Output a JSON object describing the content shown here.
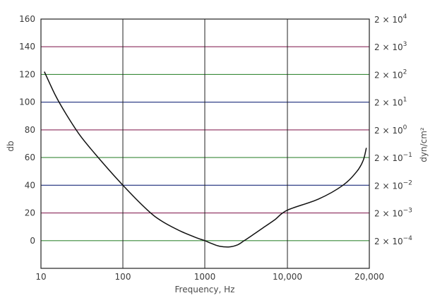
{
  "chart_data": {
    "type": "line",
    "xlabel": "Frequency, Hz",
    "ylabel": "db",
    "y2label": "dyn/cm²",
    "x_scale": "log-per-decade",
    "x_ticks": [
      "10",
      "100",
      "1000",
      "10,000",
      "20,000"
    ],
    "ylim": [
      -20,
      160
    ],
    "y_ticks": [
      0,
      20,
      40,
      60,
      80,
      100,
      120,
      140,
      160
    ],
    "y2_ticks": [
      {
        "y": 0,
        "label": "2 × 10",
        "exp": "−4"
      },
      {
        "y": 20,
        "label": "2 × 10",
        "exp": "−3"
      },
      {
        "y": 40,
        "label": "2 × 10",
        "exp": "−2"
      },
      {
        "y": 60,
        "label": "2 × 10",
        "exp": "−1"
      },
      {
        "y": 80,
        "label": "2 × 10",
        "exp": "0"
      },
      {
        "y": 100,
        "label": "2 × 10",
        "exp": "1"
      },
      {
        "y": 120,
        "label": "2 × 10",
        "exp": "2"
      },
      {
        "y": 140,
        "label": "2 × 10",
        "exp": "3"
      },
      {
        "y": 160,
        "label": "2 × 10",
        "exp": "4"
      }
    ],
    "grid": true,
    "grid_colors": [
      "#3a8a3a",
      "#8a2a5a",
      "#1a2a7a"
    ],
    "series": [
      {
        "color": "#111111",
        "x": [
          11,
          15,
          20,
          30,
          50,
          100,
          200,
          300,
          500,
          800,
          1000,
          1200,
          1500,
          2000,
          2500,
          3000,
          4000,
          5000,
          7000,
          10000,
          13000,
          16000,
          18000,
          19000,
          19500
        ],
        "y": [
          122,
          105,
          92,
          76,
          60,
          40,
          22,
          14,
          7,
          2,
          0,
          -2,
          -4,
          -4.5,
          -3,
          0,
          5,
          9,
          15,
          22,
          30,
          40,
          50,
          58,
          67
        ]
      }
    ]
  }
}
